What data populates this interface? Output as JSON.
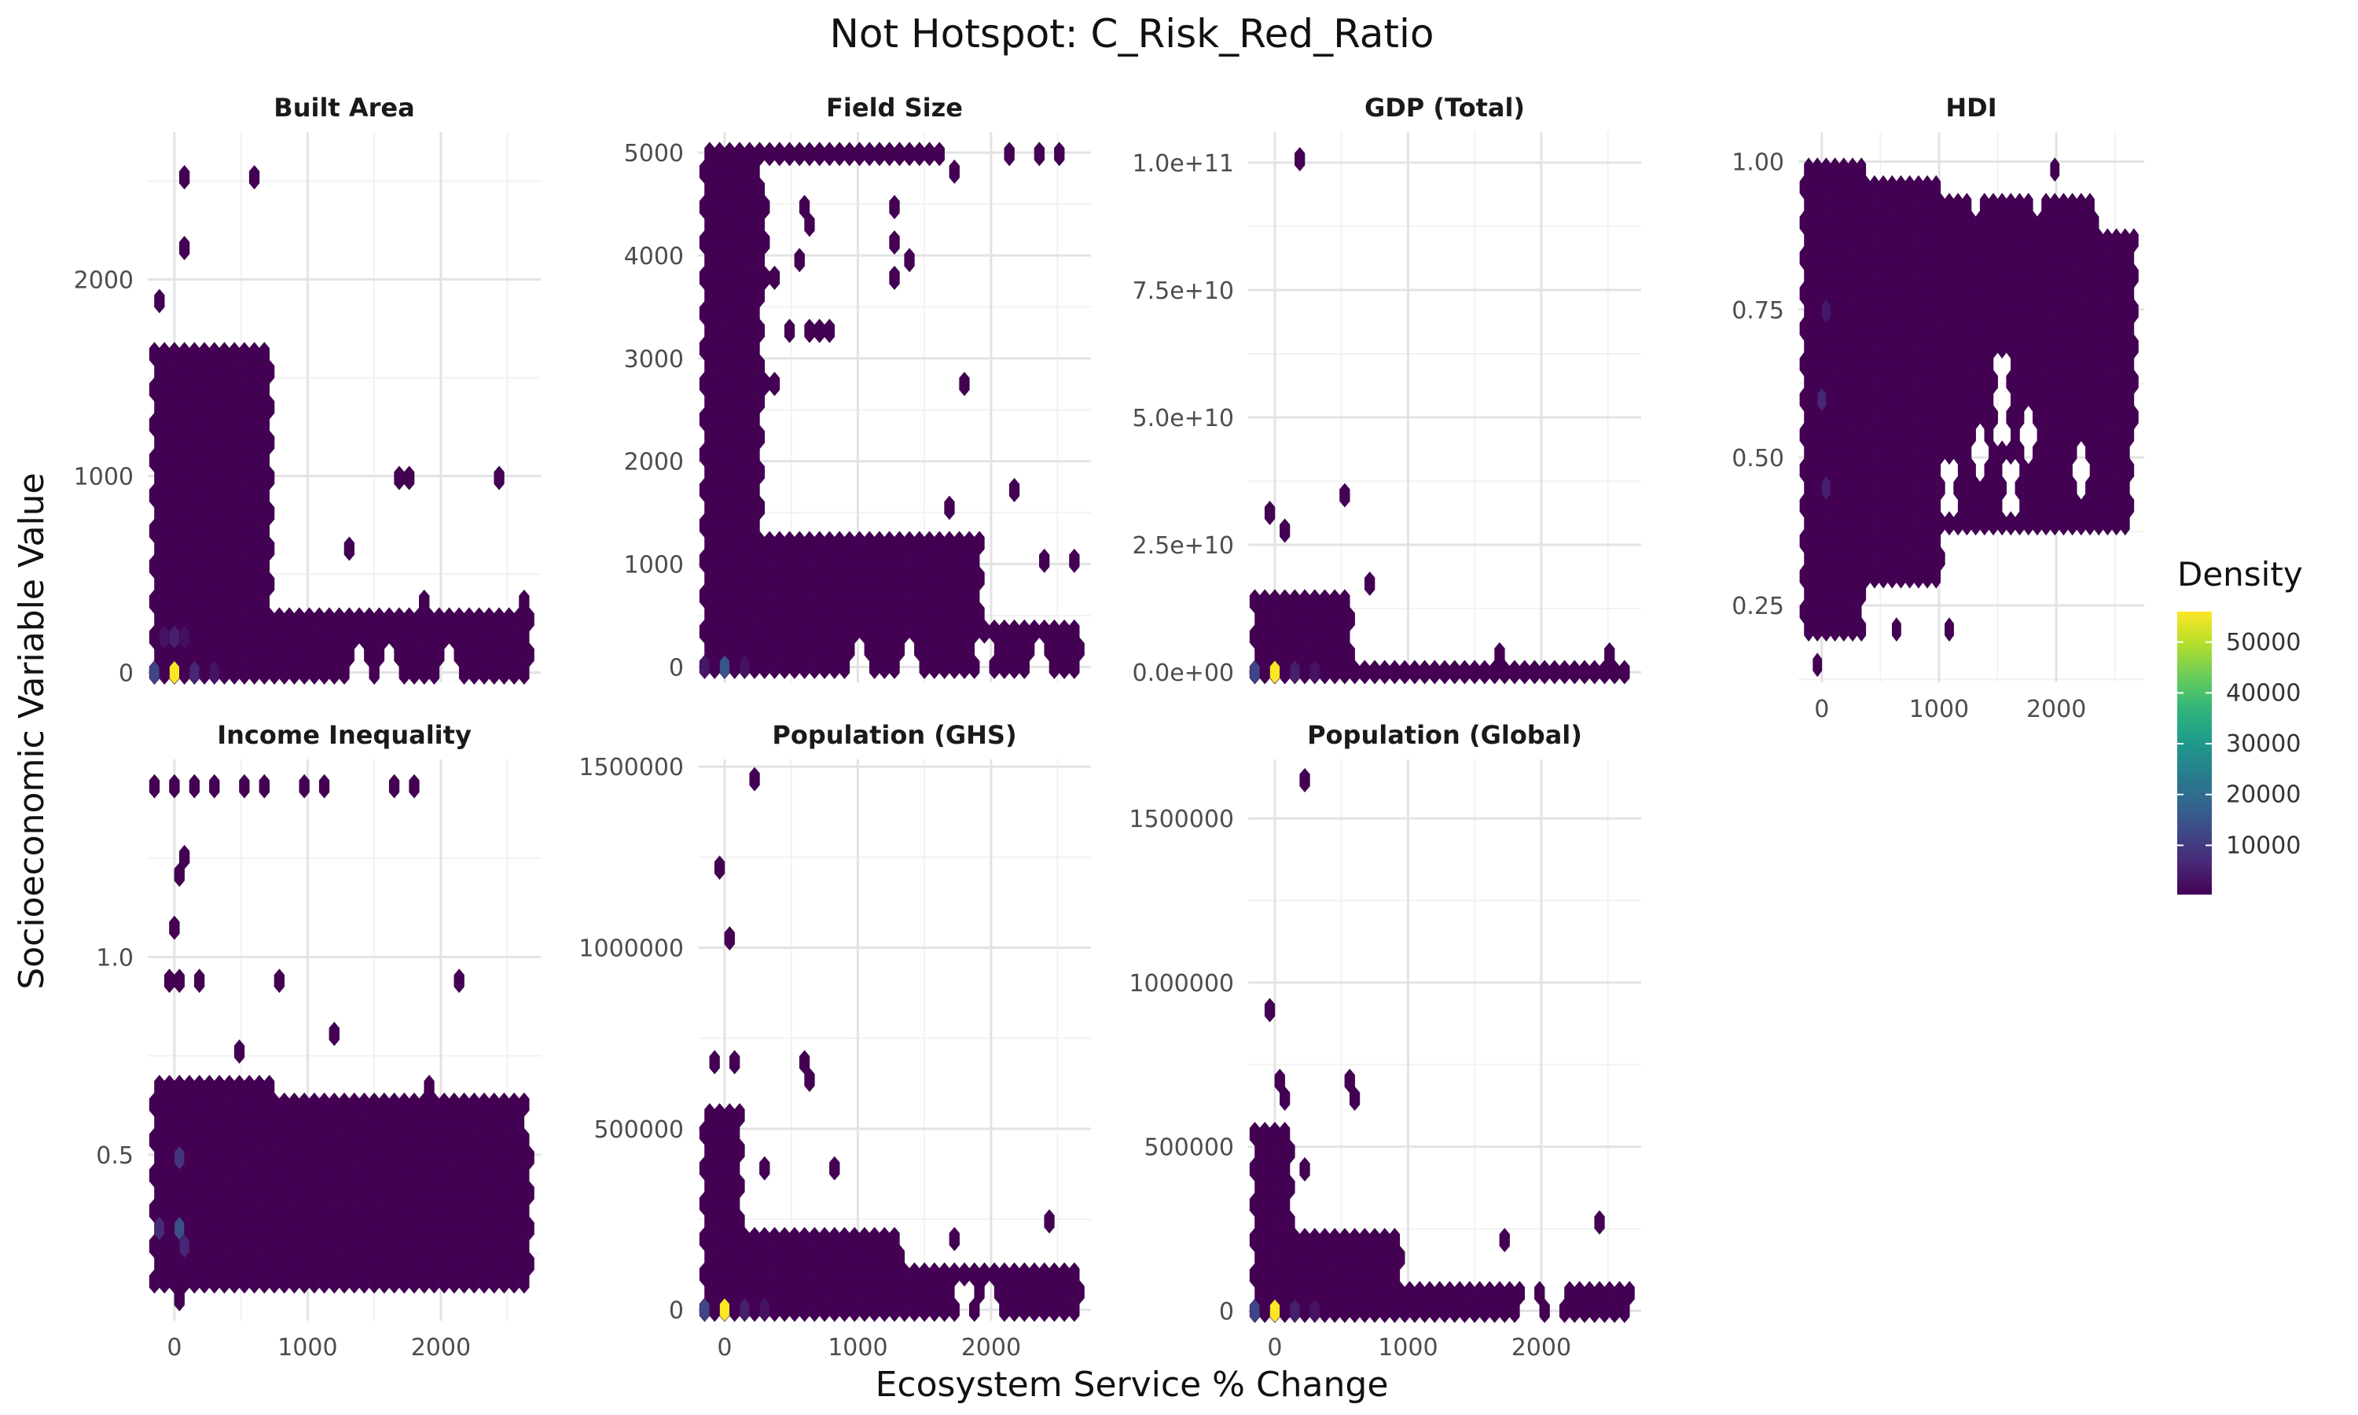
{
  "title": "Not Hotspot: C_Risk_Red_Ratio",
  "xlabel": "Ecosystem Service % Change",
  "ylabel": "Socioeconomic Variable Value",
  "legend": {
    "title": "Density",
    "ticks": [
      "10000",
      "20000",
      "30000",
      "40000",
      "50000"
    ],
    "placement": "right"
  },
  "colors": {
    "low": "#440154",
    "mid": "#21908c",
    "high": "#fde725"
  },
  "chart_data": [
    {
      "type": "hexbin",
      "panel": "Built Area",
      "xlim": [
        -200,
        2750
      ],
      "ylim": [
        -50,
        2750
      ],
      "x_ticks": [
        0,
        1000,
        2000
      ],
      "y_ticks": [
        0,
        1000,
        2000
      ],
      "y_tick_labels": [
        "0",
        "1000",
        "2000"
      ],
      "points": [
        [
          0,
          0,
          56000
        ],
        [
          -150,
          0,
          12000
        ],
        [
          150,
          0,
          6000
        ],
        [
          300,
          0,
          3000
        ],
        [
          0,
          150,
          5000
        ],
        [
          -100,
          150,
          3000
        ],
        [
          100,
          150,
          2500
        ],
        [
          -100,
          1900,
          300
        ],
        [
          50,
          2150,
          300
        ],
        [
          200,
          2750,
          300
        ],
        [
          50,
          2500,
          300
        ],
        [
          600,
          2500,
          300
        ],
        [
          450,
          1200,
          300
        ],
        [
          500,
          1050,
          300
        ],
        [
          1650,
          950,
          300
        ],
        [
          1750,
          950,
          300
        ],
        [
          2450,
          950,
          300
        ],
        [
          1300,
          600,
          300
        ],
        [
          1850,
          350,
          300
        ],
        [
          2650,
          350,
          300
        ]
      ],
      "fill_regions": [
        [
          -150,
          700,
          0,
          1600
        ],
        [
          -150,
          500,
          0,
          700
        ],
        [
          -150,
          2650,
          0,
          280
        ]
      ],
      "gaps": [
        [
          1400,
          100
        ],
        [
          1600,
          200
        ],
        [
          2050,
          150
        ]
      ]
    },
    {
      "type": "hexbin",
      "panel": "Field Size",
      "xlim": [
        -200,
        2750
      ],
      "ylim": [
        -150,
        5200
      ],
      "x_ticks": [
        0,
        1000,
        2000
      ],
      "y_ticks": [
        0,
        1000,
        2000,
        3000,
        4000,
        5000
      ],
      "y_tick_labels": [
        "0",
        "1000",
        "2000",
        "3000",
        "4000",
        "5000"
      ],
      "points": [
        [
          0,
          0,
          15000
        ],
        [
          -150,
          0,
          4000
        ],
        [
          150,
          0,
          3000
        ],
        [
          2150,
          5000,
          300
        ],
        [
          2350,
          5000,
          300
        ],
        [
          2500,
          5000,
          300
        ],
        [
          1750,
          4800,
          300
        ],
        [
          1300,
          4550,
          300
        ],
        [
          600,
          4550,
          300
        ],
        [
          650,
          4350,
          300
        ],
        [
          300,
          4550,
          300
        ],
        [
          300,
          4150,
          300
        ],
        [
          550,
          3900,
          300
        ],
        [
          1300,
          4100,
          300
        ],
        [
          1350,
          3900,
          300
        ],
        [
          1300,
          3700,
          300
        ],
        [
          400,
          3700,
          300
        ],
        [
          300,
          3700,
          300
        ],
        [
          700,
          3250,
          300
        ],
        [
          600,
          3250,
          300
        ],
        [
          500,
          3250,
          300
        ],
        [
          800,
          3250,
          300
        ],
        [
          300,
          2800,
          300
        ],
        [
          400,
          2800,
          300
        ],
        [
          1800,
          2800,
          300
        ],
        [
          1700,
          1550,
          300
        ],
        [
          2200,
          1700,
          300
        ],
        [
          2400,
          1100,
          300
        ],
        [
          2650,
          1100,
          300
        ]
      ],
      "fill_regions": [
        [
          -150,
          1900,
          0,
          1200
        ],
        [
          -150,
          250,
          1200,
          5000
        ],
        [
          -50,
          1600,
          5000,
          5000
        ],
        [
          -150,
          2650,
          0,
          350
        ]
      ],
      "gaps": [
        [
          1000,
          650
        ],
        [
          1400,
          550
        ],
        [
          1950,
          500
        ],
        [
          2350,
          550
        ]
      ]
    },
    {
      "type": "hexbin",
      "panel": "GDP (Total)",
      "xlim": [
        -200,
        2750
      ],
      "ylim": [
        -2000000000.0,
        106000000000.0
      ],
      "x_ticks": [
        0,
        1000,
        2000
      ],
      "y_ticks": [
        0,
        25000000000.0,
        50000000000.0,
        75000000000.0,
        100000000000.0
      ],
      "y_tick_labels": [
        "0.0e+00",
        "2.5e+10",
        "5.0e+10",
        "7.5e+10",
        "1.0e+11"
      ],
      "points": [
        [
          0,
          0,
          56000
        ],
        [
          -150,
          0,
          12000
        ],
        [
          150,
          0,
          5000
        ],
        [
          300,
          0,
          3000
        ],
        [
          200,
          101000000000.0,
          300
        ],
        [
          -50,
          31000000000.0,
          300
        ],
        [
          50,
          26500000000.0,
          300
        ],
        [
          550,
          35000000000.0,
          300
        ],
        [
          700,
          18000000000.0,
          300
        ],
        [
          1700,
          5000000000.0,
          300
        ],
        [
          2500,
          5000000000.0,
          300
        ]
      ],
      "fill_regions": [
        [
          -150,
          550,
          0,
          15000000000.0
        ],
        [
          -150,
          2650,
          0,
          1000000000.0
        ]
      ],
      "gaps": []
    },
    {
      "type": "hexbin",
      "panel": "HDI",
      "xlim": [
        -200,
        2750
      ],
      "ylim": [
        0.12,
        1.05
      ],
      "x_ticks": [
        0,
        1000,
        2000
      ],
      "y_ticks": [
        0.25,
        0.5,
        0.75,
        1.0
      ],
      "y_tick_labels": [
        "0.25",
        "0.50",
        "0.75",
        "1.00"
      ],
      "x_tick_labels": [
        "0",
        "1000",
        "2000"
      ],
      "points": [
        [
          0,
          0.6,
          6000
        ],
        [
          0,
          0.45,
          5000
        ],
        [
          0,
          0.75,
          4000
        ],
        [
          2000,
          1.0,
          300
        ],
        [
          -50,
          0.15,
          300
        ],
        [
          600,
          0.2,
          300
        ],
        [
          1100,
          0.2,
          300
        ]
      ],
      "fill_regions": [
        [
          -150,
          300,
          0.2,
          1.0
        ],
        [
          -150,
          1000,
          0.3,
          0.97
        ],
        [
          -150,
          2600,
          0.4,
          0.88
        ],
        [
          1000,
          2300,
          0.45,
          0.92
        ],
        [
          2300,
          2650,
          0.55,
          0.88
        ]
      ],
      "gaps": [
        [
          1550,
          0.6,
          0.05
        ],
        [
          1750,
          0.55,
          0.04
        ],
        [
          1350,
          0.5,
          0.04
        ],
        [
          1100,
          0.45,
          0.04
        ],
        [
          1600,
          0.45,
          0.04
        ],
        [
          2200,
          0.48,
          0.04
        ],
        [
          1300,
          0.95,
          0.04
        ],
        [
          1850,
          0.95,
          0.04
        ]
      ]
    },
    {
      "type": "hexbin",
      "panel": "Income Inequality",
      "xlim": [
        -200,
        2750
      ],
      "ylim": [
        0.08,
        1.5
      ],
      "x_ticks": [
        0,
        1000,
        2000
      ],
      "y_ticks": [
        0.5,
        1.0
      ],
      "y_tick_labels": [
        "0.5",
        "1.0"
      ],
      "x_tick_labels": [
        "0",
        "1000",
        "2000"
      ],
      "points": [
        [
          0,
          0.33,
          14000
        ],
        [
          -100,
          0.3,
          7000
        ],
        [
          0,
          0.5,
          9000
        ],
        [
          100,
          0.25,
          6000
        ],
        [
          -150,
          1.42,
          300
        ],
        [
          0,
          1.42,
          300
        ],
        [
          150,
          1.42,
          300
        ],
        [
          300,
          1.42,
          300
        ],
        [
          500,
          1.42,
          300
        ],
        [
          650,
          1.42,
          300
        ],
        [
          950,
          1.42,
          300
        ],
        [
          1100,
          1.42,
          300
        ],
        [
          1650,
          1.42,
          300
        ],
        [
          1800,
          1.42,
          300
        ],
        [
          0,
          1.2,
          300
        ],
        [
          50,
          1.25,
          300
        ],
        [
          0,
          1.08,
          300
        ],
        [
          -50,
          0.93,
          300
        ],
        [
          50,
          0.93,
          300
        ],
        [
          200,
          0.93,
          300
        ],
        [
          750,
          0.93,
          300
        ],
        [
          2100,
          0.92,
          300
        ],
        [
          1200,
          0.82,
          300
        ],
        [
          450,
          0.76,
          300
        ],
        [
          1250,
          0.64,
          300
        ],
        [
          1900,
          0.66,
          300
        ],
        [
          0,
          0.12,
          300
        ]
      ],
      "fill_regions": [
        [
          -150,
          700,
          0.2,
          0.68
        ],
        [
          -150,
          2600,
          0.2,
          0.62
        ],
        [
          2450,
          2650,
          0.2,
          0.5
        ]
      ],
      "gaps": []
    },
    {
      "type": "hexbin",
      "panel": "Population (GHS)",
      "xlim": [
        -200,
        2750
      ],
      "ylim": [
        -30000,
        1520000
      ],
      "x_ticks": [
        0,
        1000,
        2000
      ],
      "y_ticks": [
        0,
        500000,
        1000000,
        1500000
      ],
      "y_tick_labels": [
        "0",
        "500000",
        "1000000",
        "1500000"
      ],
      "x_tick_labels": [
        "0",
        "1000",
        "2000"
      ],
      "points": [
        [
          0,
          0,
          56000
        ],
        [
          -150,
          0,
          12000
        ],
        [
          150,
          0,
          5000
        ],
        [
          300,
          0,
          3000
        ],
        [
          200,
          1450000,
          300
        ],
        [
          -50,
          1200000,
          300
        ],
        [
          0,
          1010000,
          300
        ],
        [
          -50,
          700000,
          300
        ],
        [
          50,
          700000,
          300
        ],
        [
          600,
          700000,
          300
        ],
        [
          650,
          630000,
          300
        ],
        [
          800,
          380000,
          300
        ],
        [
          300,
          380000,
          300
        ],
        [
          1700,
          190000,
          300
        ],
        [
          2450,
          250000,
          300
        ],
        [
          2650,
          60000,
          300
        ]
      ],
      "fill_regions": [
        [
          -150,
          100,
          0,
          520000
        ],
        [
          -150,
          1300,
          0,
          200000
        ],
        [
          -150,
          2600,
          0,
          80000
        ]
      ],
      "gaps": [
        [
          1800,
          40000
        ],
        [
          2000,
          40000
        ]
      ]
    },
    {
      "type": "hexbin",
      "panel": "Population (Global)",
      "xlim": [
        -200,
        2750
      ],
      "ylim": [
        -30000,
        1680000
      ],
      "x_ticks": [
        0,
        1000,
        2000
      ],
      "y_ticks": [
        0,
        500000,
        1000000,
        1500000
      ],
      "y_tick_labels": [
        "0",
        "500000",
        "1000000",
        "1500000"
      ],
      "x_tick_labels": [
        "0",
        "1000",
        "2000"
      ],
      "points": [
        [
          0,
          0,
          56000
        ],
        [
          -150,
          0,
          12000
        ],
        [
          150,
          0,
          5000
        ],
        [
          300,
          0,
          3000
        ],
        [
          200,
          1600000,
          300
        ],
        [
          -50,
          910000,
          300
        ],
        [
          0,
          700000,
          300
        ],
        [
          50,
          630000,
          300
        ],
        [
          550,
          700000,
          300
        ],
        [
          600,
          630000,
          300
        ],
        [
          250,
          420000,
          300
        ],
        [
          750,
          200000,
          300
        ],
        [
          1700,
          200000,
          300
        ],
        [
          2450,
          280000,
          300
        ],
        [
          2650,
          80000,
          300
        ]
      ],
      "fill_regions": [
        [
          -150,
          100,
          0,
          560000
        ],
        [
          -150,
          900,
          0,
          200000
        ],
        [
          -150,
          2600,
          0,
          80000
        ]
      ],
      "gaps": [
        [
          1900,
          40000
        ],
        [
          2100,
          40000
        ]
      ]
    }
  ]
}
